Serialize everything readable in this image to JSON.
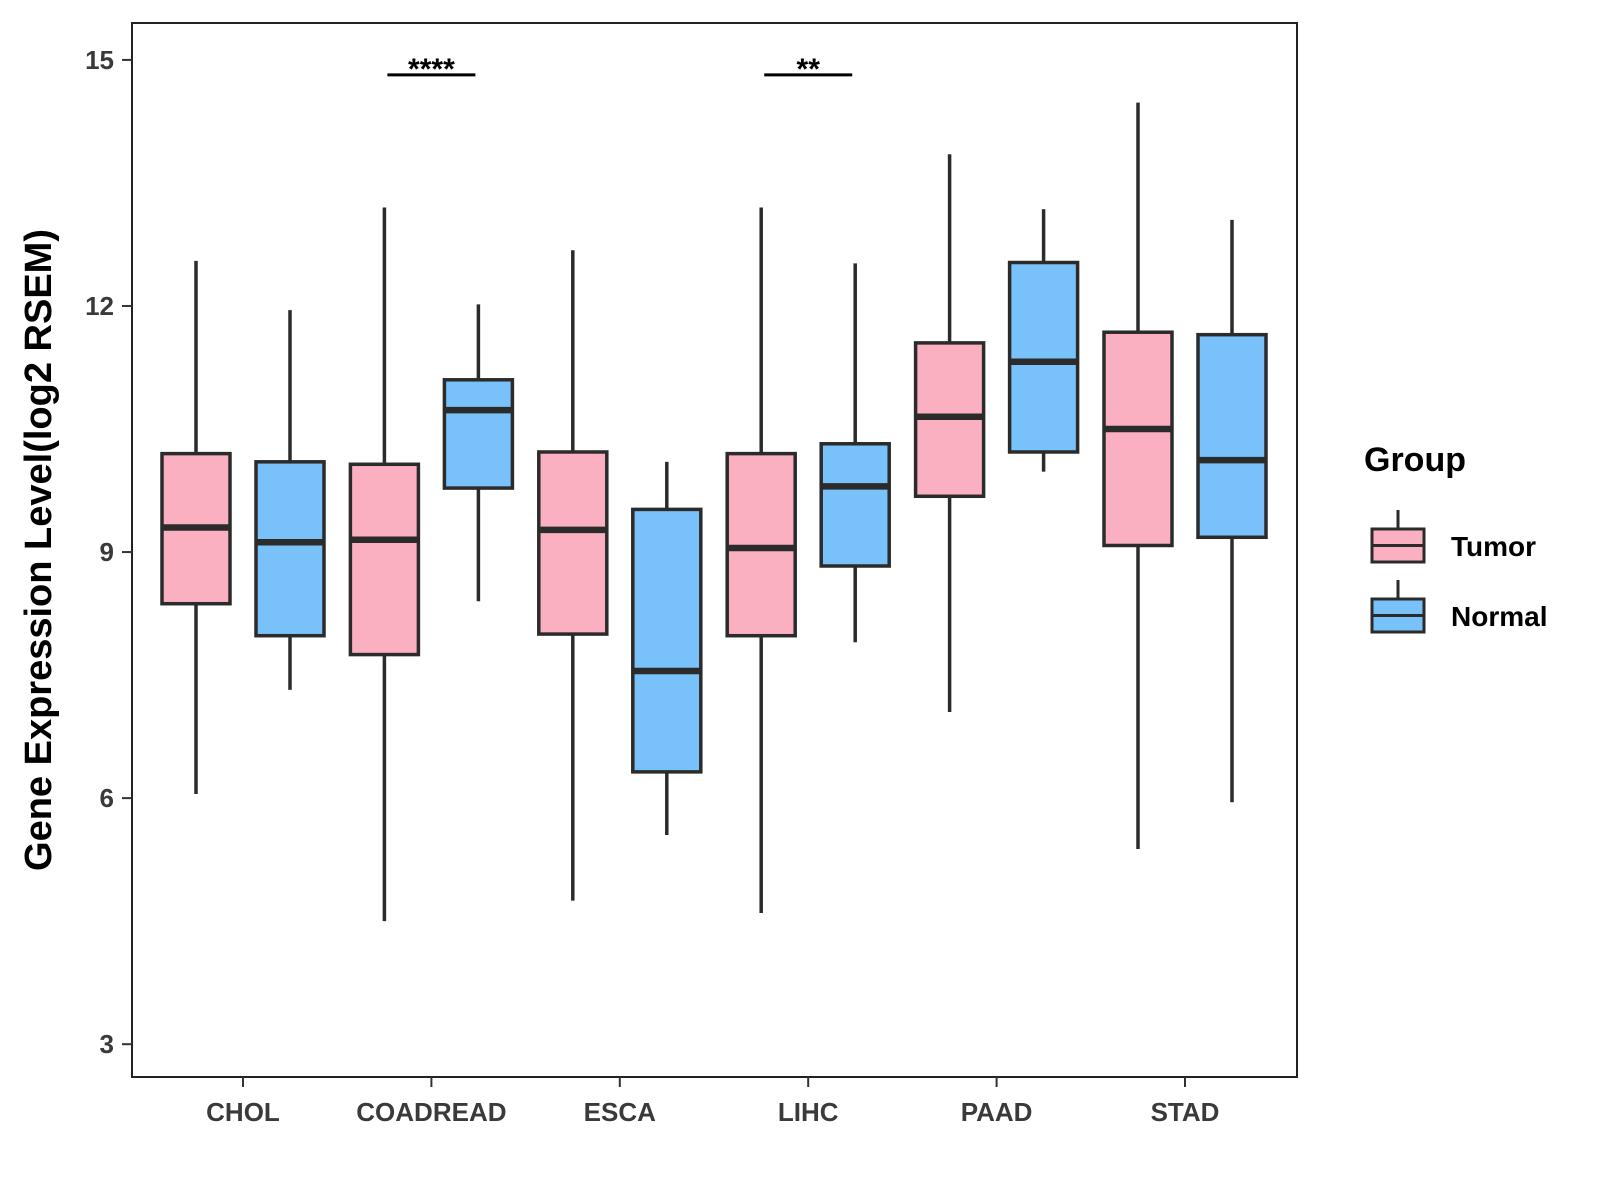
{
  "chart_data": {
    "type": "boxplot",
    "title": "",
    "xlabel": "",
    "ylabel": "Gene Expression Level(log2 RSEM)",
    "ylim": [
      2.6,
      15.45
    ],
    "yticks": [
      3,
      6,
      9,
      12,
      15
    ],
    "grid": false,
    "legend": {
      "title": "Group",
      "position": "right"
    },
    "groups": [
      {
        "name": "Tumor",
        "color": "#FBB0C2"
      },
      {
        "name": "Normal",
        "color": "#78C1F9"
      }
    ],
    "categories": [
      "CHOL",
      "COADREAD",
      "ESCA",
      "LIHC",
      "PAAD",
      "STAD"
    ],
    "boxes": [
      {
        "category": "CHOL",
        "group": "Tumor",
        "min": 6.05,
        "q1": 8.37,
        "median": 9.3,
        "q3": 10.2,
        "max": 12.55
      },
      {
        "category": "CHOL",
        "group": "Normal",
        "min": 7.32,
        "q1": 7.98,
        "median": 9.12,
        "q3": 10.1,
        "max": 11.95
      },
      {
        "category": "COADREAD",
        "group": "Tumor",
        "min": 4.5,
        "q1": 7.75,
        "median": 9.15,
        "q3": 10.07,
        "max": 13.2
      },
      {
        "category": "COADREAD",
        "group": "Normal",
        "min": 8.4,
        "q1": 9.78,
        "median": 10.73,
        "q3": 11.1,
        "max": 12.02
      },
      {
        "category": "ESCA",
        "group": "Tumor",
        "min": 4.75,
        "q1": 8.0,
        "median": 9.27,
        "q3": 10.22,
        "max": 12.68
      },
      {
        "category": "ESCA",
        "group": "Normal",
        "min": 5.55,
        "q1": 6.32,
        "median": 7.55,
        "q3": 9.52,
        "max": 10.1
      },
      {
        "category": "LIHC",
        "group": "Tumor",
        "min": 4.6,
        "q1": 7.98,
        "median": 9.05,
        "q3": 10.2,
        "max": 13.2
      },
      {
        "category": "LIHC",
        "group": "Normal",
        "min": 7.9,
        "q1": 8.83,
        "median": 9.8,
        "q3": 10.32,
        "max": 12.52
      },
      {
        "category": "PAAD",
        "group": "Tumor",
        "min": 7.05,
        "q1": 9.68,
        "median": 10.65,
        "q3": 11.55,
        "max": 13.85
      },
      {
        "category": "PAAD",
        "group": "Normal",
        "min": 9.98,
        "q1": 10.22,
        "median": 11.32,
        "q3": 12.53,
        "max": 13.18
      },
      {
        "category": "STAD",
        "group": "Tumor",
        "min": 5.38,
        "q1": 9.08,
        "median": 10.5,
        "q3": 11.68,
        "max": 14.48
      },
      {
        "category": "STAD",
        "group": "Normal",
        "min": 5.95,
        "q1": 9.18,
        "median": 10.12,
        "q3": 11.65,
        "max": 13.05
      }
    ],
    "significance": [
      {
        "category": "COADREAD",
        "label": "****"
      },
      {
        "category": "LIHC",
        "label": "**"
      }
    ]
  }
}
